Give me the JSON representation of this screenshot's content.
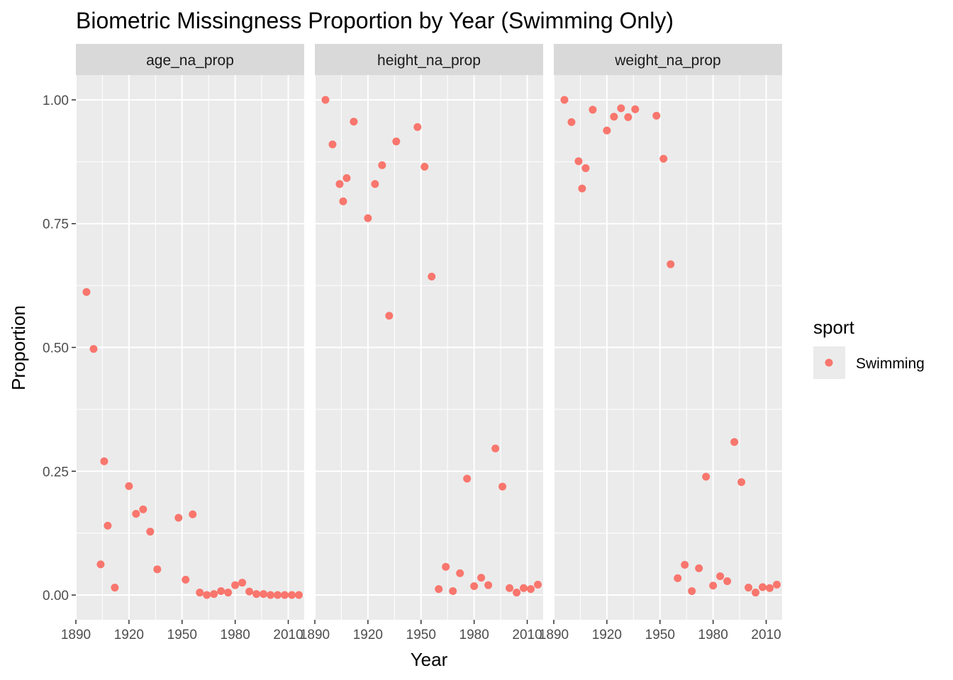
{
  "chart_data": {
    "type": "scatter",
    "title": "Biometric Missingness Proportion by Year (Swimming Only)",
    "xlabel": "Year",
    "ylabel": "Proportion",
    "xlim": [
      1890,
      2019
    ],
    "ylim": [
      -0.05,
      1.05
    ],
    "x_ticks": [
      1890,
      1920,
      1950,
      1980,
      2010
    ],
    "x_tick_labels": [
      "1890",
      "1920",
      "1950",
      "1980",
      "2010"
    ],
    "y_ticks": [
      0,
      0.25,
      0.5,
      0.75,
      1.0
    ],
    "y_tick_labels": [
      "0.00",
      "0.25",
      "0.50",
      "0.75",
      "1.00"
    ],
    "grid": true,
    "legend": {
      "title": "sport",
      "placement": "right",
      "entries": [
        "Swimming"
      ]
    },
    "colors": {
      "Swimming": "#F8766D",
      "panel_bg": "#EBEBEB",
      "strip_bg": "#D9D9D9",
      "legend_key_bg": "#EBEBEB",
      "grid": "#FFFFFF"
    },
    "facets": [
      {
        "label": "age_na_prop",
        "points": [
          [
            1896,
            0.612
          ],
          [
            1900,
            0.497
          ],
          [
            1904,
            0.062
          ],
          [
            1906,
            0.27
          ],
          [
            1908,
            0.14
          ],
          [
            1912,
            0.015
          ],
          [
            1920,
            0.22
          ],
          [
            1924,
            0.164
          ],
          [
            1928,
            0.173
          ],
          [
            1932,
            0.128
          ],
          [
            1936,
            0.052
          ],
          [
            1948,
            0.156
          ],
          [
            1952,
            0.031
          ],
          [
            1956,
            0.163
          ],
          [
            1960,
            0.005
          ],
          [
            1964,
            0.0
          ],
          [
            1968,
            0.002
          ],
          [
            1972,
            0.008
          ],
          [
            1976,
            0.005
          ],
          [
            1980,
            0.02
          ],
          [
            1984,
            0.025
          ],
          [
            1988,
            0.007
          ],
          [
            1992,
            0.002
          ],
          [
            1996,
            0.002
          ],
          [
            2000,
            0.0
          ],
          [
            2004,
            0.0
          ],
          [
            2008,
            0.0
          ],
          [
            2012,
            0.0
          ],
          [
            2016,
            0.0
          ]
        ]
      },
      {
        "label": "height_na_prop",
        "points": [
          [
            1896,
            1.0
          ],
          [
            1900,
            0.91
          ],
          [
            1904,
            0.83
          ],
          [
            1906,
            0.795
          ],
          [
            1908,
            0.842
          ],
          [
            1912,
            0.956
          ],
          [
            1920,
            0.761
          ],
          [
            1924,
            0.83
          ],
          [
            1928,
            0.868
          ],
          [
            1932,
            0.564
          ],
          [
            1936,
            0.916
          ],
          [
            1948,
            0.945
          ],
          [
            1952,
            0.865
          ],
          [
            1956,
            0.643
          ],
          [
            1960,
            0.012
          ],
          [
            1964,
            0.057
          ],
          [
            1968,
            0.008
          ],
          [
            1972,
            0.044
          ],
          [
            1976,
            0.235
          ],
          [
            1980,
            0.018
          ],
          [
            1984,
            0.035
          ],
          [
            1988,
            0.02
          ],
          [
            1992,
            0.296
          ],
          [
            1996,
            0.219
          ],
          [
            2000,
            0.014
          ],
          [
            2004,
            0.005
          ],
          [
            2008,
            0.014
          ],
          [
            2012,
            0.012
          ],
          [
            2016,
            0.021
          ]
        ]
      },
      {
        "label": "weight_na_prop",
        "points": [
          [
            1896,
            1.0
          ],
          [
            1900,
            0.955
          ],
          [
            1904,
            0.876
          ],
          [
            1906,
            0.821
          ],
          [
            1908,
            0.862
          ],
          [
            1912,
            0.98
          ],
          [
            1920,
            0.938
          ],
          [
            1924,
            0.966
          ],
          [
            1928,
            0.983
          ],
          [
            1932,
            0.965
          ],
          [
            1936,
            0.981
          ],
          [
            1948,
            0.968
          ],
          [
            1952,
            0.881
          ],
          [
            1956,
            0.668
          ],
          [
            1960,
            0.034
          ],
          [
            1964,
            0.061
          ],
          [
            1968,
            0.008
          ],
          [
            1972,
            0.054
          ],
          [
            1976,
            0.239
          ],
          [
            1980,
            0.019
          ],
          [
            1984,
            0.038
          ],
          [
            1988,
            0.028
          ],
          [
            1992,
            0.309
          ],
          [
            1996,
            0.228
          ],
          [
            2000,
            0.015
          ],
          [
            2004,
            0.005
          ],
          [
            2008,
            0.016
          ],
          [
            2012,
            0.014
          ],
          [
            2016,
            0.021
          ]
        ]
      }
    ]
  }
}
